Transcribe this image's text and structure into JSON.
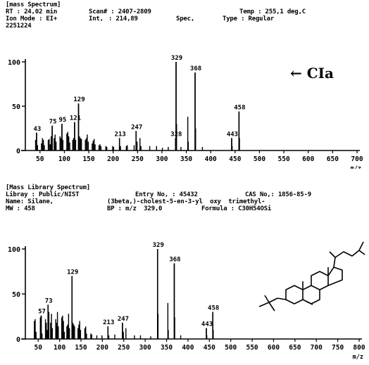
{
  "colors": {
    "ink": "#000000",
    "background": "#ffffff"
  },
  "top_header": {
    "title": "[mass Spectrum]",
    "rt": "RT : 24,02 min",
    "scan": "Scan# : 2407-2809",
    "temp": "Temp : 255,1 deg,C",
    "ion_mode": "Ion Mode : EI+",
    "int": "Int,",
    "int_value": ": 214,89",
    "spec": "Spec,",
    "type": "Type : Regular",
    "id": "2251224"
  },
  "bottom_header": {
    "title": "[Mass Library Spectrum]",
    "library": "Libray : Public/NIST",
    "entry": "Entry No, : 45432",
    "cas": "CAS No,: 1856-85-9",
    "name": "Name: Silane,",
    "name_cont": "(3beta,)-cholest-5-en-3-yl  oxy  trimethyl-",
    "mw": "MW : 458",
    "bp": "BP : m/z  329,0",
    "formula": "Formula : C30H54OSi"
  },
  "annotation": {
    "arrow": "←",
    "label": "CIa"
  },
  "chart_data": [
    {
      "type": "bar",
      "title": "[mass Spectrum]",
      "xlabel": "m/z",
      "ylabel": "",
      "xlim": [
        20,
        700
      ],
      "ylim": [
        0,
        100
      ],
      "xticks": [
        50,
        100,
        150,
        200,
        250,
        300,
        350,
        400,
        450,
        500,
        550,
        600,
        650,
        700
      ],
      "yticks": [
        0,
        50,
        100
      ],
      "labeled_peaks": [
        {
          "x": 43,
          "y": 20,
          "label": "43"
        },
        {
          "x": 75,
          "y": 28,
          "label": "75"
        },
        {
          "x": 95,
          "y": 30,
          "label": "95"
        },
        {
          "x": 121,
          "y": 32,
          "label": "121"
        },
        {
          "x": 129,
          "y": 53,
          "label": "129"
        },
        {
          "x": 213,
          "y": 14,
          "label": "213"
        },
        {
          "x": 247,
          "y": 22,
          "label": "247"
        },
        {
          "x": 329,
          "y": 100,
          "label": "329"
        },
        {
          "x": 328,
          "y": 14,
          "label": "328"
        },
        {
          "x": 368,
          "y": 88,
          "label": "368"
        },
        {
          "x": 443,
          "y": 14,
          "label": "443"
        },
        {
          "x": 458,
          "y": 44,
          "label": "458"
        }
      ],
      "peaks": [
        [
          41,
          12
        ],
        [
          43,
          20
        ],
        [
          45,
          6
        ],
        [
          53,
          8
        ],
        [
          55,
          14
        ],
        [
          57,
          12
        ],
        [
          59,
          6
        ],
        [
          67,
          12
        ],
        [
          69,
          13
        ],
        [
          71,
          7
        ],
        [
          73,
          16
        ],
        [
          75,
          28
        ],
        [
          79,
          14
        ],
        [
          81,
          18
        ],
        [
          83,
          10
        ],
        [
          91,
          16
        ],
        [
          93,
          14
        ],
        [
          95,
          30
        ],
        [
          97,
          12
        ],
        [
          105,
          19
        ],
        [
          107,
          21
        ],
        [
          109,
          16
        ],
        [
          111,
          9
        ],
        [
          117,
          12
        ],
        [
          119,
          14
        ],
        [
          121,
          32
        ],
        [
          123,
          12
        ],
        [
          129,
          53
        ],
        [
          131,
          16
        ],
        [
          133,
          14
        ],
        [
          135,
          13
        ],
        [
          143,
          12
        ],
        [
          145,
          14
        ],
        [
          147,
          18
        ],
        [
          149,
          10
        ],
        [
          157,
          8
        ],
        [
          159,
          11
        ],
        [
          161,
          13
        ],
        [
          163,
          7
        ],
        [
          171,
          6
        ],
        [
          173,
          7
        ],
        [
          175,
          5
        ],
        [
          185,
          5
        ],
        [
          187,
          4
        ],
        [
          199,
          5
        ],
        [
          201,
          4
        ],
        [
          213,
          14
        ],
        [
          215,
          5
        ],
        [
          227,
          5
        ],
        [
          229,
          6
        ],
        [
          243,
          6
        ],
        [
          247,
          22
        ],
        [
          249,
          10
        ],
        [
          255,
          14
        ],
        [
          257,
          5
        ],
        [
          275,
          5
        ],
        [
          289,
          5
        ],
        [
          301,
          3
        ],
        [
          313,
          4
        ],
        [
          328,
          14
        ],
        [
          329,
          100
        ],
        [
          330,
          30
        ],
        [
          339,
          4
        ],
        [
          353,
          38
        ],
        [
          354,
          10
        ],
        [
          368,
          88
        ],
        [
          369,
          25
        ],
        [
          383,
          4
        ],
        [
          443,
          14
        ],
        [
          444,
          5
        ],
        [
          458,
          44
        ],
        [
          459,
          14
        ]
      ]
    },
    {
      "type": "bar",
      "title": "[Mass Library Spectrum]",
      "xlabel": "m/z",
      "ylabel": "",
      "xlim": [
        20,
        800
      ],
      "ylim": [
        0,
        100
      ],
      "xticks": [
        50,
        100,
        150,
        200,
        250,
        300,
        350,
        400,
        450,
        500,
        550,
        600,
        650,
        700,
        750,
        800
      ],
      "yticks": [
        0,
        50,
        100
      ],
      "labeled_peaks": [
        {
          "x": 57,
          "y": 26,
          "label": "57"
        },
        {
          "x": 73,
          "y": 38,
          "label": "73"
        },
        {
          "x": 129,
          "y": 70,
          "label": "129"
        },
        {
          "x": 213,
          "y": 14,
          "label": "213"
        },
        {
          "x": 247,
          "y": 18,
          "label": "247"
        },
        {
          "x": 329,
          "y": 100,
          "label": "329"
        },
        {
          "x": 368,
          "y": 84,
          "label": "368"
        },
        {
          "x": 443,
          "y": 12,
          "label": "443"
        },
        {
          "x": 458,
          "y": 30,
          "label": "458"
        }
      ],
      "peaks": [
        [
          41,
          20
        ],
        [
          43,
          22
        ],
        [
          45,
          8
        ],
        [
          55,
          24
        ],
        [
          57,
          26
        ],
        [
          59,
          6
        ],
        [
          67,
          22
        ],
        [
          69,
          18
        ],
        [
          71,
          10
        ],
        [
          73,
          38
        ],
        [
          75,
          30
        ],
        [
          79,
          18
        ],
        [
          81,
          28
        ],
        [
          83,
          12
        ],
        [
          91,
          22
        ],
        [
          93,
          18
        ],
        [
          95,
          30
        ],
        [
          97,
          14
        ],
        [
          105,
          24
        ],
        [
          107,
          26
        ],
        [
          109,
          20
        ],
        [
          111,
          8
        ],
        [
          117,
          14
        ],
        [
          119,
          16
        ],
        [
          121,
          28
        ],
        [
          123,
          12
        ],
        [
          129,
          70
        ],
        [
          131,
          18
        ],
        [
          133,
          16
        ],
        [
          135,
          14
        ],
        [
          143,
          12
        ],
        [
          145,
          16
        ],
        [
          147,
          20
        ],
        [
          149,
          10
        ],
        [
          159,
          12
        ],
        [
          161,
          14
        ],
        [
          163,
          6
        ],
        [
          173,
          6
        ],
        [
          175,
          5
        ],
        [
          187,
          4
        ],
        [
          199,
          4
        ],
        [
          213,
          14
        ],
        [
          215,
          4
        ],
        [
          229,
          5
        ],
        [
          247,
          18
        ],
        [
          249,
          8
        ],
        [
          255,
          12
        ],
        [
          275,
          4
        ],
        [
          289,
          4
        ],
        [
          313,
          3
        ],
        [
          329,
          100
        ],
        [
          330,
          28
        ],
        [
          353,
          40
        ],
        [
          354,
          10
        ],
        [
          368,
          84
        ],
        [
          369,
          24
        ],
        [
          383,
          4
        ],
        [
          443,
          12
        ],
        [
          444,
          4
        ],
        [
          458,
          30
        ],
        [
          459,
          10
        ]
      ]
    }
  ]
}
